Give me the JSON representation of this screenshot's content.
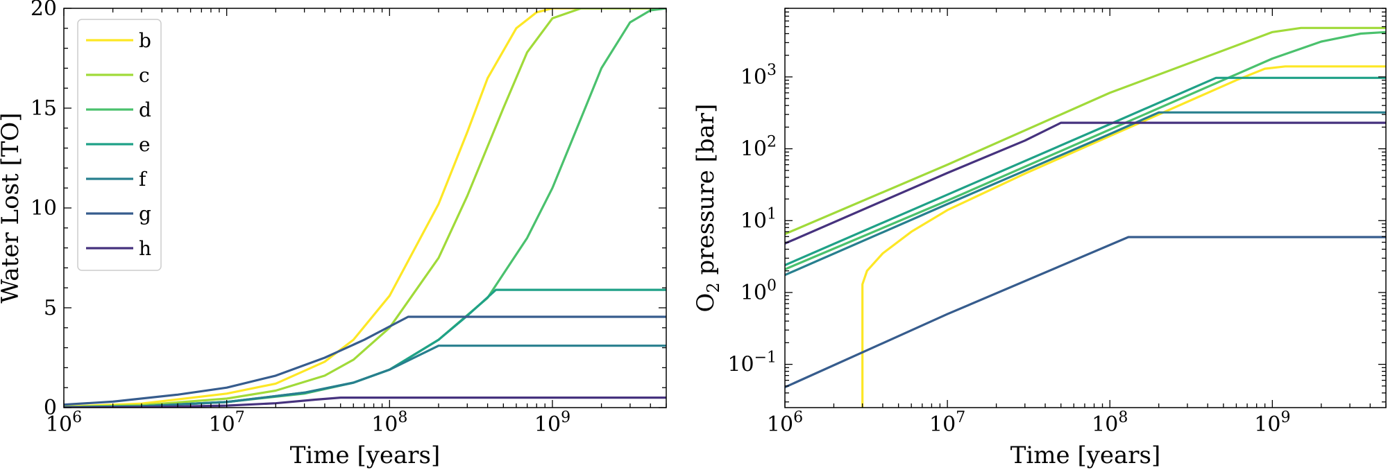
{
  "chart_data": [
    {
      "type": "line",
      "title": "",
      "xlabel": "Time [years]",
      "ylabel": "Water Lost [TO]",
      "xscale": "log",
      "yscale": "linear",
      "xlim": [
        1000000,
        5000000000
      ],
      "ylim": [
        0,
        20
      ],
      "x_ticks": [
        {
          "value": 1000000,
          "base": "10",
          "exp": "6"
        },
        {
          "value": 10000000,
          "base": "10",
          "exp": "7"
        },
        {
          "value": 100000000,
          "base": "10",
          "exp": "8"
        },
        {
          "value": 1000000000,
          "base": "10",
          "exp": "9"
        }
      ],
      "y_ticks": [
        0,
        5,
        10,
        15,
        20
      ],
      "legend_position": "top-left",
      "series": [
        {
          "name": "b",
          "color": "#fde725",
          "points": [
            [
              1000000.0,
              0.05
            ],
            [
              3000000.0,
              0.2
            ],
            [
              10000000.0,
              0.7
            ],
            [
              20000000.0,
              1.2
            ],
            [
              40000000.0,
              2.3
            ],
            [
              60000000.0,
              3.4
            ],
            [
              100000000.0,
              5.6
            ],
            [
              200000000.0,
              10.2
            ],
            [
              300000000.0,
              13.8
            ],
            [
              400000000.0,
              16.5
            ],
            [
              600000000.0,
              19.0
            ],
            [
              800000000.0,
              19.8
            ],
            [
              1000000000.0,
              20
            ],
            [
              5000000000.0,
              20
            ]
          ]
        },
        {
          "name": "c",
          "color": "#a0da39",
          "points": [
            [
              1000000.0,
              0.03
            ],
            [
              3000000.0,
              0.12
            ],
            [
              10000000.0,
              0.45
            ],
            [
              20000000.0,
              0.85
            ],
            [
              40000000.0,
              1.6
            ],
            [
              60000000.0,
              2.4
            ],
            [
              100000000.0,
              4.0
            ],
            [
              200000000.0,
              7.5
            ],
            [
              300000000.0,
              10.6
            ],
            [
              500000000.0,
              15.0
            ],
            [
              700000000.0,
              17.8
            ],
            [
              1000000000.0,
              19.5
            ],
            [
              1500000000.0,
              20
            ],
            [
              5000000000.0,
              20
            ]
          ]
        },
        {
          "name": "d",
          "color": "#4ac16d",
          "points": [
            [
              1000000.0,
              0.02
            ],
            [
              3000000.0,
              0.07
            ],
            [
              10000000.0,
              0.28
            ],
            [
              30000000.0,
              0.7
            ],
            [
              60000000.0,
              1.25
            ],
            [
              100000000.0,
              1.9
            ],
            [
              200000000.0,
              3.4
            ],
            [
              400000000.0,
              5.5
            ],
            [
              700000000.0,
              8.5
            ],
            [
              1000000000.0,
              11.0
            ],
            [
              1500000000.0,
              14.5
            ],
            [
              2000000000.0,
              17.0
            ],
            [
              3000000000.0,
              19.3
            ],
            [
              4000000000.0,
              19.9
            ],
            [
              5000000000.0,
              20
            ]
          ]
        },
        {
          "name": "e",
          "color": "#1fa187",
          "points": [
            [
              1000000.0,
              0.02
            ],
            [
              3000000.0,
              0.07
            ],
            [
              10000000.0,
              0.28
            ],
            [
              30000000.0,
              0.75
            ],
            [
              60000000.0,
              1.25
            ],
            [
              100000000.0,
              1.9
            ],
            [
              200000000.0,
              3.4
            ],
            [
              300000000.0,
              4.6
            ],
            [
              450000000.0,
              5.9
            ],
            [
              5000000000.0,
              5.9
            ]
          ]
        },
        {
          "name": "f",
          "color": "#277f8e",
          "points": [
            [
              1000000.0,
              0.02
            ],
            [
              3000000.0,
              0.07
            ],
            [
              10000000.0,
              0.28
            ],
            [
              30000000.0,
              0.75
            ],
            [
              60000000.0,
              1.25
            ],
            [
              100000000.0,
              1.9
            ],
            [
              150000000.0,
              2.6
            ],
            [
              200000000.0,
              3.1
            ],
            [
              5000000000.0,
              3.1
            ]
          ]
        },
        {
          "name": "g",
          "color": "#365c8d",
          "points": [
            [
              1000000.0,
              0.15
            ],
            [
              2000000.0,
              0.3
            ],
            [
              5000000.0,
              0.65
            ],
            [
              10000000.0,
              1.0
            ],
            [
              20000000.0,
              1.6
            ],
            [
              40000000.0,
              2.5
            ],
            [
              70000000.0,
              3.4
            ],
            [
              130000000.0,
              4.55
            ],
            [
              5000000000.0,
              4.55
            ]
          ]
        },
        {
          "name": "h",
          "color": "#46327e",
          "points": [
            [
              1000000.0,
              0.0
            ],
            [
              3000000.0,
              0.02
            ],
            [
              10000000.0,
              0.1
            ],
            [
              20000000.0,
              0.22
            ],
            [
              35000000.0,
              0.4
            ],
            [
              50000000.0,
              0.5
            ],
            [
              5000000000.0,
              0.5
            ]
          ]
        }
      ]
    },
    {
      "type": "line",
      "title": "",
      "xlabel": "Time [years]",
      "ylabel": "O2 pressure [bar]",
      "ylabel_parts": {
        "pre": "O",
        "sub": "2",
        "post": " pressure [bar]"
      },
      "xscale": "log",
      "yscale": "log",
      "xlim": [
        1000000,
        5000000000
      ],
      "ylim": [
        0.025,
        9000
      ],
      "x_ticks": [
        {
          "value": 1000000,
          "base": "10",
          "exp": "6"
        },
        {
          "value": 10000000,
          "base": "10",
          "exp": "7"
        },
        {
          "value": 100000000,
          "base": "10",
          "exp": "8"
        },
        {
          "value": 1000000000,
          "base": "10",
          "exp": "9"
        }
      ],
      "y_ticks": [
        {
          "value": 0.1,
          "base": "10",
          "exp": "−1"
        },
        {
          "value": 1,
          "base": "10",
          "exp": "0"
        },
        {
          "value": 10,
          "base": "10",
          "exp": "1"
        },
        {
          "value": 100,
          "base": "10",
          "exp": "2"
        },
        {
          "value": 1000,
          "base": "10",
          "exp": "3"
        }
      ],
      "series": [
        {
          "name": "b",
          "color": "#fde725",
          "points": [
            [
              3000000.0,
              0.025
            ],
            [
              3000000.0,
              1.3
            ],
            [
              3200000.0,
              2.0
            ],
            [
              4000000.0,
              3.5
            ],
            [
              6000000.0,
              7
            ],
            [
              10000000.0,
              14
            ],
            [
              30000000.0,
              45
            ],
            [
              100000000.0,
              150
            ],
            [
              300000000.0,
              450
            ],
            [
              600000000.0,
              900
            ],
            [
              900000000.0,
              1300
            ],
            [
              1200000000.0,
              1400
            ],
            [
              5000000000.0,
              1400
            ]
          ]
        },
        {
          "name": "c",
          "color": "#a0da39",
          "points": [
            [
              1000000.0,
              6.5
            ],
            [
              10000000.0,
              60
            ],
            [
              100000000.0,
              600
            ],
            [
              1000000000.0,
              4200
            ],
            [
              1500000000.0,
              4800
            ],
            [
              5000000000.0,
              4800
            ]
          ]
        },
        {
          "name": "d",
          "color": "#4ac16d",
          "points": [
            [
              1000000.0,
              2.1
            ],
            [
              10000000.0,
              19
            ],
            [
              100000000.0,
              185
            ],
            [
              1000000000.0,
              1800
            ],
            [
              2000000000.0,
              3100
            ],
            [
              3500000000.0,
              4000
            ],
            [
              5000000000.0,
              4200
            ]
          ]
        },
        {
          "name": "e",
          "color": "#1fa187",
          "points": [
            [
              1000000.0,
              2.4
            ],
            [
              10000000.0,
              23
            ],
            [
              100000000.0,
              220
            ],
            [
              450000000.0,
              970
            ],
            [
              5000000000.0,
              970
            ]
          ]
        },
        {
          "name": "f",
          "color": "#277f8e",
          "points": [
            [
              1000000.0,
              1.75
            ],
            [
              10000000.0,
              17
            ],
            [
              100000000.0,
              160
            ],
            [
              200000000.0,
              320
            ],
            [
              5000000000.0,
              320
            ]
          ]
        },
        {
          "name": "g",
          "color": "#365c8d",
          "points": [
            [
              1000000.0,
              0.048
            ],
            [
              10000000.0,
              0.5
            ],
            [
              130000000.0,
              5.9
            ],
            [
              5000000000.0,
              5.9
            ]
          ]
        },
        {
          "name": "h",
          "color": "#46327e",
          "points": [
            [
              1000000.0,
              4.8
            ],
            [
              10000000.0,
              46
            ],
            [
              30000000.0,
              130
            ],
            [
              50000000.0,
              230
            ],
            [
              5000000000.0,
              230
            ]
          ]
        }
      ]
    }
  ]
}
